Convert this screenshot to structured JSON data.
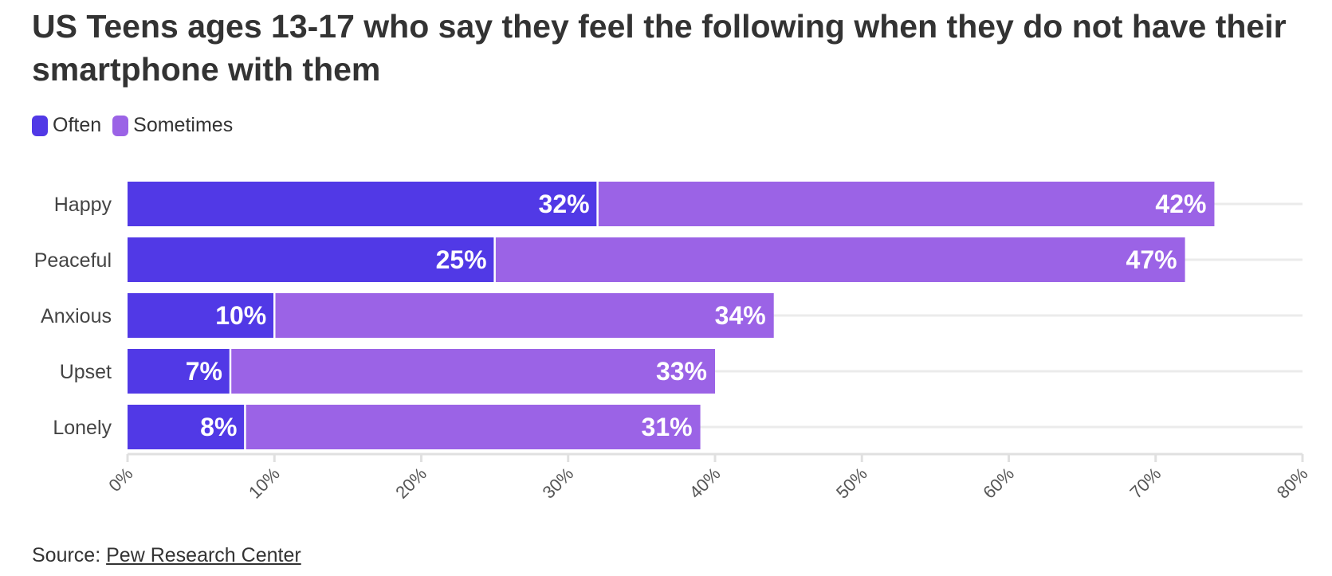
{
  "chart_data": {
    "type": "bar",
    "orientation": "horizontal",
    "stacked": true,
    "title": "US Teens ages 13-17 who say they feel the following when they do not have their smartphone with them",
    "categories": [
      "Happy",
      "Peaceful",
      "Anxious",
      "Upset",
      "Lonely"
    ],
    "series": [
      {
        "name": "Often",
        "color": "#5139e6",
        "values": [
          32,
          25,
          10,
          7,
          8
        ],
        "labels": [
          "32%",
          "25%",
          "10%",
          "7%",
          "8%"
        ]
      },
      {
        "name": "Sometimes",
        "color": "#9b63e6",
        "values": [
          42,
          47,
          34,
          33,
          31
        ],
        "labels": [
          "42%",
          "47%",
          "34%",
          "33%",
          "31%"
        ]
      }
    ],
    "xlim": [
      0,
      80
    ],
    "xticks": [
      0,
      10,
      20,
      30,
      40,
      50,
      60,
      70,
      80
    ],
    "xtick_labels": [
      "0%",
      "10%",
      "20%",
      "30%",
      "40%",
      "50%",
      "60%",
      "70%",
      "80%"
    ],
    "xlabel": "",
    "ylabel": "",
    "grid": true,
    "legend_position": "top-left"
  },
  "source": {
    "prefix": "Source:",
    "link_text": "Pew Research Center"
  }
}
